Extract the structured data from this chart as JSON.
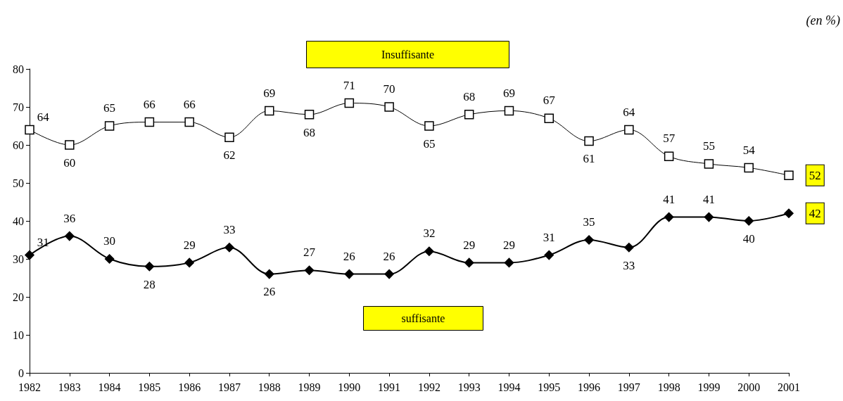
{
  "chart_data": {
    "type": "line",
    "categories": [
      "1982",
      "1983",
      "1984",
      "1985",
      "1986",
      "1987",
      "1988",
      "1989",
      "1990",
      "1991",
      "1992",
      "1993",
      "1994",
      "1995",
      "1996",
      "1997",
      "1998",
      "1999",
      "2000",
      "2001"
    ],
    "series": [
      {
        "name": "Insuffisante",
        "color": "#000000",
        "marker": "square",
        "values": [
          64,
          60,
          65,
          66,
          66,
          62,
          69,
          68,
          71,
          70,
          65,
          68,
          69,
          67,
          61,
          64,
          57,
          55,
          54,
          52
        ]
      },
      {
        "name": "suffisante",
        "color": "#000000",
        "marker": "diamond",
        "values": [
          31,
          36,
          30,
          28,
          29,
          33,
          26,
          27,
          26,
          26,
          32,
          29,
          29,
          31,
          35,
          33,
          41,
          41,
          40,
          42
        ]
      }
    ],
    "ylim": [
      0,
      80
    ],
    "yticks": [
      0,
      10,
      20,
      30,
      40,
      50,
      60,
      70,
      80
    ],
    "grid": false,
    "legend": false,
    "data_labels": true,
    "line_style": "solid",
    "annotations": [
      "(en %)"
    ]
  }
}
